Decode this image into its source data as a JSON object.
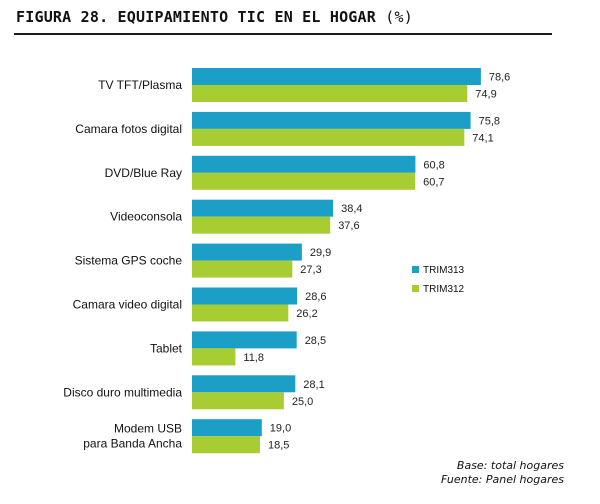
{
  "header": {
    "title": "FIGURA 28. EQUIPAMIENTO TIC EN EL HOGAR",
    "unit": "(%)"
  },
  "chart_data": {
    "type": "bar",
    "orientation": "horizontal",
    "categories": [
      [
        "TV TFT/Plasma"
      ],
      [
        "Camara fotos digital"
      ],
      [
        "DVD/Blue Ray"
      ],
      [
        "Videoconsola"
      ],
      [
        "Sistema GPS coche"
      ],
      [
        "Camara video digital"
      ],
      [
        "Tablet"
      ],
      [
        "Disco duro multimedia"
      ],
      [
        "Modem USB",
        "para Banda Ancha"
      ]
    ],
    "series": [
      {
        "name": "TRIM313",
        "color": "#1b9fc6",
        "values": [
          78.6,
          75.8,
          60.8,
          38.4,
          29.9,
          28.6,
          28.5,
          28.1,
          19.0
        ],
        "labels": [
          "78,6",
          "75,8",
          "60,8",
          "38,4",
          "29,9",
          "28,6",
          "28,5",
          "28,1",
          "19,0"
        ]
      },
      {
        "name": "TRIM312",
        "color": "#a8cd32",
        "values": [
          74.9,
          74.1,
          60.7,
          37.6,
          27.3,
          26.2,
          11.8,
          25.0,
          18.5
        ],
        "labels": [
          "74,9",
          "74,1",
          "60,7",
          "37,6",
          "27,3",
          "26,2",
          "11,8",
          "25,0",
          "18,5"
        ]
      }
    ],
    "xlim": [
      0,
      100
    ],
    "grid": false,
    "legend_position": "right"
  },
  "footer": {
    "base": "Base: total hogares",
    "source": "Fuente: Panel hogares"
  }
}
